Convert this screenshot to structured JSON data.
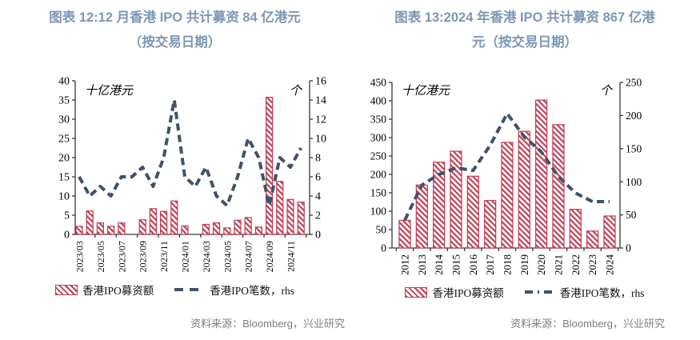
{
  "colors": {
    "bar_red": "#c23a50",
    "line_navy": "#3f5269",
    "title_blue": "#7d97b5",
    "source_gray": "#7f7f7f",
    "axis_black": "#3a3a3a"
  },
  "chart_data": [
    {
      "type": "bar+line",
      "title": "图表 12:12 月香港 IPO 共计募资 84 亿港元（按交易日期）",
      "title_line1": "图表 12:12 月香港 IPO 共计募资 84 亿港元",
      "title_line2": "（按交易日期）",
      "left_axis": {
        "label": "十亿港元",
        "min": 0,
        "max": 40,
        "step": 5
      },
      "right_axis": {
        "label": "个",
        "min": 0,
        "max": 16,
        "step": 2
      },
      "categories": [
        "2023/03",
        "2023/04",
        "2023/05",
        "2023/06",
        "2023/07",
        "2023/08",
        "2023/09",
        "2023/10",
        "2023/11",
        "2023/12",
        "2024/01",
        "2024/02",
        "2024/03",
        "2024/04",
        "2024/05",
        "2024/06",
        "2024/07",
        "2024/08",
        "2024/09",
        "2024/10",
        "2024/11",
        "2024/12"
      ],
      "x_label_every": 2,
      "series": [
        {
          "name": "香港IPO募资额",
          "type": "bar",
          "axis": "left",
          "values": [
            2.1,
            6.1,
            3.0,
            2.1,
            3.0,
            0,
            3.8,
            6.7,
            6.0,
            8.7,
            2.2,
            0,
            2.6,
            3.0,
            1.7,
            3.7,
            4.4,
            1.9,
            35.7,
            13.8,
            9.1,
            8.4
          ]
        },
        {
          "name": "香港IPO笔数，rhs",
          "type": "dashed_line",
          "axis": "right",
          "values": [
            6,
            4,
            5,
            4,
            6,
            6,
            7,
            5,
            8,
            14,
            6,
            5,
            7,
            4,
            3,
            6,
            10,
            8,
            3,
            8,
            7,
            9
          ]
        }
      ],
      "legend_position": "bottom",
      "source": "资料来源：Bloomberg，兴业研究"
    },
    {
      "type": "bar+line",
      "title": "图表 13:2024 年香港 IPO 共计募资 867 亿港元（按交易日期）",
      "title_line1": "图表 13:2024 年香港 IPO 共计募资 867 亿港",
      "title_line2": "元（按交易日期）",
      "left_axis": {
        "label": "十亿港元",
        "min": 0,
        "max": 450,
        "step": 50
      },
      "right_axis": {
        "label": "个",
        "min": 0,
        "max": 250,
        "step": 50
      },
      "categories": [
        "2012",
        "2013",
        "2014",
        "2015",
        "2016",
        "2017",
        "2018",
        "2019",
        "2020",
        "2021",
        "2022",
        "2023",
        "2024"
      ],
      "x_label_every": 1,
      "series": [
        {
          "name": "香港IPO募资额",
          "type": "bar",
          "axis": "left",
          "values": [
            75,
            171,
            233,
            263,
            195,
            129,
            287,
            317,
            402,
            335,
            105,
            46,
            87
          ]
        },
        {
          "name": "香港IPO笔数，rhs",
          "type": "dashed_line",
          "axis": "right",
          "values": [
            42,
            95,
            111,
            121,
            117,
            155,
            203,
            168,
            145,
            108,
            83,
            70,
            70
          ]
        }
      ],
      "legend_position": "bottom",
      "source": "资料来源：Bloomberg，兴业研究"
    }
  ]
}
